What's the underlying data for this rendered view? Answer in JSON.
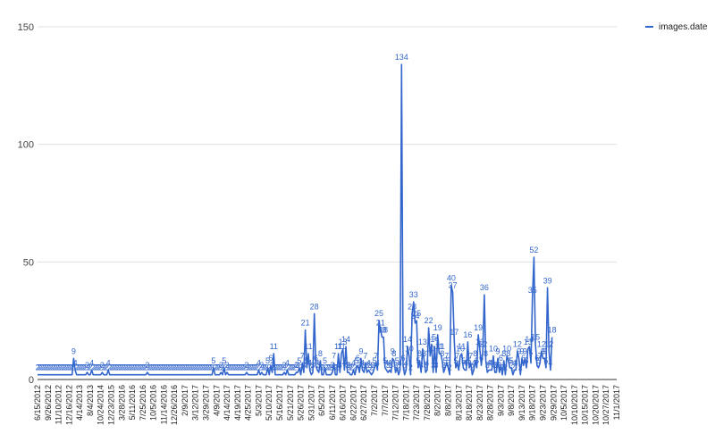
{
  "chart_data": {
    "type": "line",
    "title": "",
    "xlabel": "",
    "ylabel": "",
    "ylim": [
      0,
      150
    ],
    "yticks": [
      0,
      50,
      100,
      150
    ],
    "grid": true,
    "legend_position": "top-right",
    "series": [
      {
        "name": "images.date",
        "color": "#3366cc"
      }
    ],
    "x_tick_labels": [
      "6/15/2012",
      "9/26/2012",
      "11/10/2012",
      "12/16/2012",
      "4/14/2013",
      "8/4/2013",
      "10/24/2014",
      "12/23/2015",
      "3/28/2016",
      "5/11/2016",
      "7/25/2016",
      "10/5/2016",
      "11/14/2016",
      "12/26/2016",
      "2/9/2017",
      "3/12/2017",
      "3/29/2017",
      "4/9/2017",
      "4/14/2017",
      "4/19/2017",
      "4/25/2017",
      "5/3/2017",
      "5/10/2017",
      "5/16/2017",
      "5/21/2017",
      "5/26/2017",
      "5/31/2017",
      "6/5/2017",
      "6/11/2017",
      "6/16/2017",
      "6/22/2017",
      "6/27/2017",
      "7/2/2017",
      "7/7/2017",
      "7/12/2017",
      "7/18/2017",
      "7/23/2017",
      "7/28/2017",
      "8/2/2017",
      "8/8/2017",
      "8/13/2017",
      "8/18/2017",
      "8/23/2017",
      "8/28/2017",
      "9/3/2017",
      "9/8/2017",
      "9/13/2017",
      "9/18/2017",
      "9/23/2017",
      "9/29/2017",
      "10/5/2017",
      "10/10/2017",
      "10/15/2017",
      "10/20/2017",
      "10/27/2017",
      "11/1/2017"
    ],
    "x_tick_positions": [
      0,
      7,
      14,
      21,
      28,
      35,
      42,
      49,
      56,
      63,
      70,
      77,
      84,
      91,
      98,
      105,
      112,
      119,
      126,
      133,
      140,
      147,
      154,
      161,
      168,
      175,
      182,
      189,
      196,
      203,
      210,
      217,
      224,
      231,
      238,
      245,
      252,
      259,
      266,
      273,
      280,
      287,
      294,
      301,
      308,
      315,
      322,
      329,
      336,
      343,
      350,
      357,
      364,
      371,
      378,
      385
    ],
    "x_count": 386,
    "values": [
      2,
      2,
      2,
      2,
      2,
      2,
      2,
      2,
      2,
      2,
      2,
      2,
      2,
      2,
      2,
      2,
      2,
      2,
      2,
      2,
      2,
      2,
      2,
      2,
      9,
      4,
      2,
      2,
      2,
      2,
      2,
      2,
      2,
      3,
      2,
      2,
      4,
      2,
      2,
      2,
      2,
      2,
      2,
      3,
      2,
      2,
      2,
      4,
      2,
      2,
      2,
      2,
      2,
      2,
      2,
      2,
      2,
      2,
      2,
      2,
      2,
      2,
      2,
      2,
      2,
      2,
      2,
      2,
      2,
      2,
      2,
      2,
      2,
      3,
      2,
      2,
      2,
      2,
      2,
      2,
      2,
      2,
      2,
      2,
      2,
      2,
      2,
      2,
      2,
      2,
      2,
      2,
      2,
      2,
      2,
      2,
      2,
      2,
      2,
      2,
      2,
      2,
      2,
      2,
      2,
      2,
      2,
      2,
      2,
      2,
      2,
      2,
      2,
      2,
      2,
      2,
      2,
      5,
      2,
      2,
      2,
      2,
      3,
      2,
      5,
      2,
      3,
      2,
      2,
      2,
      2,
      2,
      2,
      2,
      2,
      2,
      2,
      2,
      2,
      3,
      2,
      2,
      2,
      2,
      2,
      2,
      2,
      4,
      2,
      3,
      2,
      2,
      2,
      5,
      2,
      6,
      3,
      11,
      2,
      2,
      2,
      2,
      2,
      2,
      3,
      2,
      4,
      2,
      2,
      2,
      2,
      2,
      3,
      3,
      5,
      2,
      7,
      3,
      21,
      5,
      11,
      4,
      2,
      3,
      28,
      6,
      4,
      3,
      8,
      2,
      2,
      5,
      2,
      2,
      2,
      2,
      3,
      7,
      2,
      2,
      11,
      3,
      11,
      13,
      4,
      14,
      3,
      3,
      2,
      2,
      4,
      2,
      5,
      6,
      3,
      9,
      4,
      3,
      7,
      3,
      4,
      3,
      2,
      3,
      5,
      7,
      4,
      25,
      21,
      18,
      18,
      5,
      4,
      3,
      4,
      3,
      9,
      8,
      3,
      5,
      2,
      4,
      134,
      6,
      2,
      4,
      14,
      10,
      2,
      28,
      33,
      24,
      25,
      5,
      8,
      3,
      13,
      8,
      3,
      4,
      22,
      10,
      15,
      3,
      14,
      3,
      19,
      11,
      11,
      8,
      3,
      5,
      7,
      5,
      2,
      40,
      37,
      17,
      5,
      7,
      4,
      10,
      11,
      5,
      4,
      4,
      16,
      5,
      7,
      2,
      4,
      8,
      5,
      19,
      13,
      6,
      12,
      36,
      8,
      3,
      4,
      4,
      4,
      10,
      3,
      3,
      9,
      3,
      6,
      2,
      8,
      2,
      10,
      8,
      5,
      5,
      2,
      4,
      4,
      12,
      9,
      2,
      9,
      6,
      9,
      5,
      13,
      14,
      7,
      35,
      52,
      15,
      6,
      5,
      7,
      12,
      9,
      9,
      5,
      39,
      12,
      4,
      18
    ]
  },
  "ui": {
    "ytick_labels": [
      "0",
      "50",
      "100",
      "150"
    ],
    "legend_label": "images.date"
  }
}
